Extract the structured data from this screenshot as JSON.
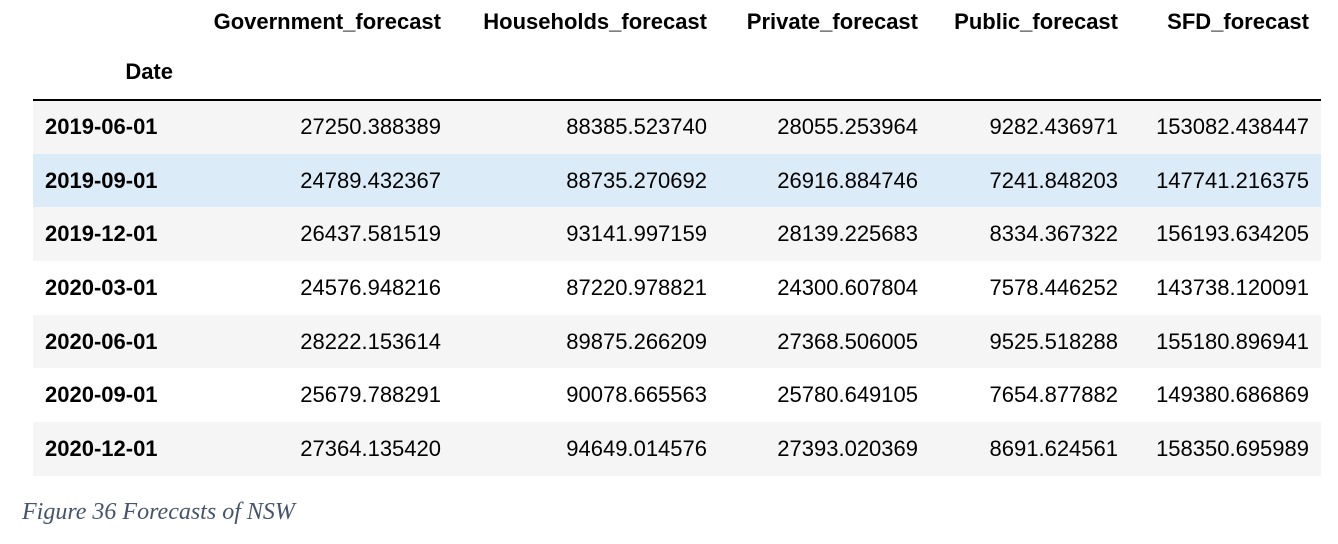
{
  "table": {
    "index_label": "Date",
    "columns": [
      "Government_forecast",
      "Households_forecast",
      "Private_forecast",
      "Public_forecast",
      "SFD_forecast"
    ],
    "rows": [
      {
        "date": "2019-06-01",
        "values": [
          "27250.388389",
          "88385.523740",
          "28055.253964",
          "9282.436971",
          "153082.438447"
        ]
      },
      {
        "date": "2019-09-01",
        "values": [
          "24789.432367",
          "88735.270692",
          "26916.884746",
          "7241.848203",
          "147741.216375"
        ]
      },
      {
        "date": "2019-12-01",
        "values": [
          "26437.581519",
          "93141.997159",
          "28139.225683",
          "8334.367322",
          "156193.634205"
        ]
      },
      {
        "date": "2020-03-01",
        "values": [
          "24576.948216",
          "87220.978821",
          "24300.607804",
          "7578.446252",
          "143738.120091"
        ]
      },
      {
        "date": "2020-06-01",
        "values": [
          "28222.153614",
          "89875.266209",
          "27368.506005",
          "9525.518288",
          "155180.896941"
        ]
      },
      {
        "date": "2020-09-01",
        "values": [
          "25679.788291",
          "90078.665563",
          "25780.649105",
          "7654.877882",
          "149380.686869"
        ]
      },
      {
        "date": "2020-12-01",
        "values": [
          "27364.135420",
          "94649.014576",
          "27393.020369",
          "8691.624561",
          "158350.695989"
        ]
      }
    ],
    "highlighted_row": 1,
    "colors": {
      "row_stripe": "#f5f5f5",
      "row_highlight": "#dcebf8",
      "caption": "#44546a"
    }
  },
  "caption": "Figure 36 Forecasts of NSW"
}
